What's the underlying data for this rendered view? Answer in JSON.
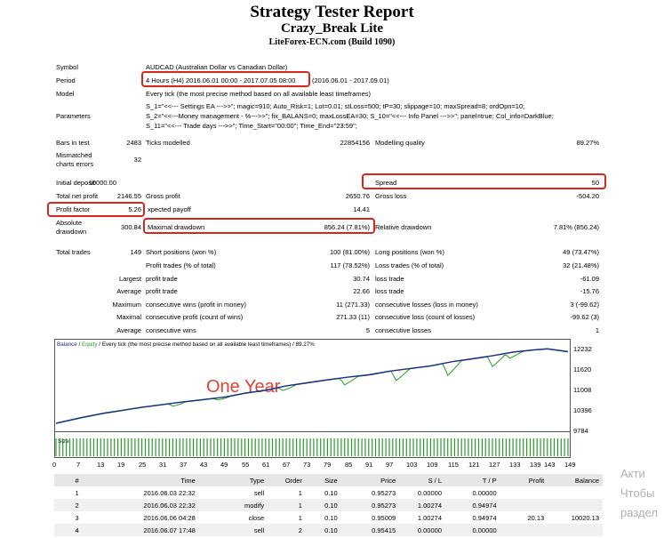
{
  "header": {
    "title": "Strategy Tester Report",
    "expert": "Crazy_Break Lite",
    "server": "LiteForex-ECN.com (Build 1090)"
  },
  "info": {
    "symbol_label": "Symbol",
    "symbol_value": "AUDCAD (Australian Dollar vs Canadian Dollar)",
    "period_label": "Period",
    "period_value_a": "4 Hours (H4) 2016.06.01 00:00 - 2017.07.05 08:00",
    "period_value_b": "(2016.06.01 - 2017.09.01)",
    "model_label": "Model",
    "model_value": "Every tick (the most precise method based on all available least timeframes)",
    "parameters_label": "Parameters",
    "parameters_lines": [
      "S_1=\"<<--- Settings EA --->>\"; magic=910; Auto_Risk=1; Lot=0.01; stLoss=500; tP=30; slippage=10; maxSpread=8; ordOpn=10;",
      "S_2=\"<<---Money management - %--->>\"; fix_BALANS=0; maxLossEA=30; S_10=\"<<--- Info Panel --->>\"; panel=true; Col_info=DarkBlue;",
      "S_11=\"<<--- Trade days --->>\"; Time_Start=\"00:00\"; Time_End=\"23:59\";"
    ]
  },
  "stats": {
    "bars_label": "Bars in test",
    "bars_value": "2483",
    "ticks_label": "Ticks modelled",
    "ticks_value": "22854156",
    "quality_label": "Modelling quality",
    "quality_value": "89.27%",
    "mismatch_label_1": "Mismatched",
    "mismatch_label_2": "charts errors",
    "mismatch_value": "32",
    "deposit_label": "Initial deposit",
    "deposit_value": "10000.00",
    "spread_label": "Spread",
    "spread_value": "50",
    "netprofit_label": "Total net profit",
    "netprofit_value": "2146.55",
    "grossprofit_label": "Gross profit",
    "grossprofit_value": "2650.76",
    "grossloss_label": "Gross loss",
    "grossloss_value": "-504.20",
    "pf_label": "Profit factor",
    "pf_value": "5.26",
    "payoff_label": "xpected payoff",
    "payoff_value": "14.41",
    "absdd_label_1": "Absolute",
    "absdd_label_2": "drawdown",
    "absdd_value": "300.84",
    "maxdd_label": "Maximal drawdown",
    "maxdd_value": "856.24 (7.81%)",
    "reldd_label": "Relative drawdown",
    "reldd_value": "7.81% (856.24)",
    "trades_label": "Total trades",
    "trades_value": "149",
    "short_label": "Short positions (won %)",
    "short_value": "100 (81.00%)",
    "long_label": "Long positions (won %)",
    "long_value": "49 (73.47%)",
    "pt_label": "Profit trades (% of total)",
    "pt_value": "117 (78.52%)",
    "lt_label": "Loss trades (% of total)",
    "lt_value": "32 (21.48%)",
    "largest_label": "Largest",
    "largest_pt_label": "profit trade",
    "largest_pt_value": "30.74",
    "largest_lt_label": "loss trade",
    "largest_lt_value": "-61.09",
    "average_label": "Average",
    "average_pt_label": "profit trade",
    "average_pt_value": "22.66",
    "average_lt_label": "loss trade",
    "average_lt_value": "-15.76",
    "maximum_label": "Maximum",
    "maxcw_label": "consecutive wins (profit in money)",
    "maxcw_value": "11 (271.33)",
    "maxcl_label": "consecutive losses (loss in money)",
    "maxcl_value": "3 (-99.62)",
    "maximal_label": "Maximal",
    "maxcp_label": "consecutive profit (count of wins)",
    "maxcp_value": "271.33 (11)",
    "maxcloss_label": "consecutive loss (count of losses)",
    "maxcloss_value": "-99.62 (3)",
    "avg2_label": "Average",
    "avgcw_label": "consecutive wins",
    "avgcw_value": "5",
    "avgcl_label": "consecutive losses",
    "avgcl_value": "1"
  },
  "chart_data": {
    "type": "line",
    "legend": {
      "balance": "Balance",
      "sep1": " / ",
      "equity": "Equity",
      "rest": " / Every tick (the most precise method based on all available least timeframes) / 89.27%"
    },
    "annotation": "One Year",
    "ylim": [
      9784,
      12450
    ],
    "y_ticks": [
      "12232",
      "11620",
      "11008",
      "10396",
      "9784"
    ],
    "y_tick_values": [
      12232,
      11620,
      11008,
      10396,
      9784
    ],
    "size_label": "Size",
    "x_ticks": [
      "0",
      "7",
      "13",
      "19",
      "25",
      "31",
      "37",
      "43",
      "49",
      "55",
      "61",
      "67",
      "73",
      "79",
      "85",
      "91",
      "97",
      "103",
      "109",
      "115",
      "121",
      "127",
      "133",
      "139",
      "143",
      "149"
    ],
    "balance_x": [
      0,
      8,
      14,
      25,
      37,
      49,
      55,
      61,
      67,
      73,
      79,
      85,
      91,
      97,
      103,
      109,
      115,
      121,
      127,
      133,
      139,
      143,
      149
    ],
    "balance_y": [
      10000,
      10180,
      10300,
      10480,
      10640,
      10780,
      10900,
      10990,
      11120,
      11210,
      11300,
      11380,
      11450,
      11560,
      11640,
      11720,
      11840,
      11930,
      12020,
      12130,
      12200,
      12232,
      12146
    ],
    "equity_dips": [
      {
        "x": 13,
        "y": 10450
      },
      {
        "x": 34,
        "y": 10510
      },
      {
        "x": 47,
        "y": 10700
      },
      {
        "x": 66,
        "y": 10980
      },
      {
        "x": 84,
        "y": 11150
      },
      {
        "x": 99,
        "y": 11280
      },
      {
        "x": 114,
        "y": 11430
      },
      {
        "x": 127,
        "y": 11700
      },
      {
        "x": 132,
        "y": 11950
      }
    ],
    "color_balance": "#1d2b8c",
    "color_equity": "#1ea01e",
    "color_size": "#2b9a2b"
  },
  "trades": {
    "headers": [
      "#",
      "Time",
      "Type",
      "Order",
      "Size",
      "Price",
      "S / L",
      "T / P",
      "Profit",
      "Balance"
    ],
    "rows": [
      [
        "1",
        "2016.06.03 22:32",
        "sell",
        "1",
        "0.10",
        "0.95273",
        "0.00000",
        "0.00000",
        "",
        ""
      ],
      [
        "2",
        "2016.06.03 22:32",
        "modify",
        "1",
        "0.10",
        "0.95273",
        "1.00274",
        "0.94974",
        "",
        ""
      ],
      [
        "3",
        "2016.06.06 04:28",
        "close",
        "1",
        "0.10",
        "0.95009",
        "1.00274",
        "0.94974",
        "20.13",
        "10020.13"
      ],
      [
        "4",
        "2016.06.07 17:48",
        "sell",
        "2",
        "0.10",
        "0.95415",
        "0.00000",
        "0.00000",
        "",
        ""
      ]
    ]
  },
  "watermark": [
    "Акти",
    "Чтобы",
    "раздел"
  ],
  "colors": {
    "highlight": "#d9261c",
    "row_alt": "#f0f0f0",
    "header_bg": "#e6e6e6"
  }
}
